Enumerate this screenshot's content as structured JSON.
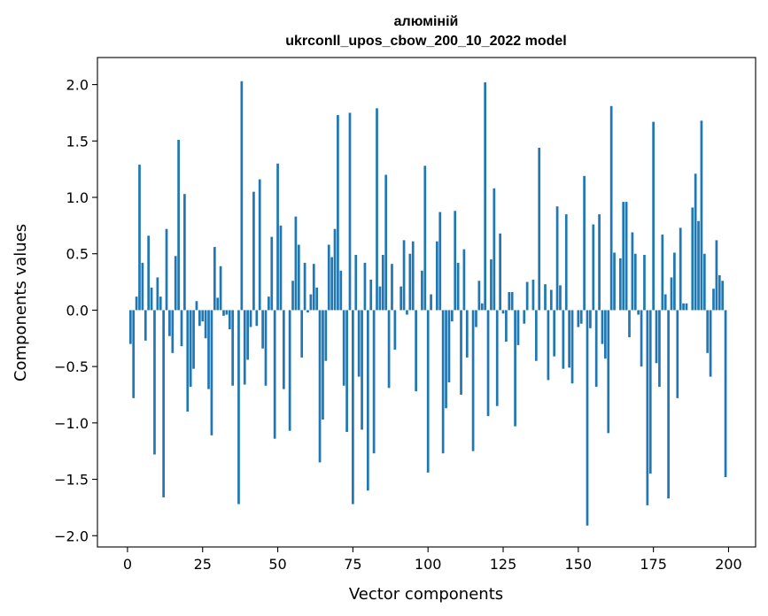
{
  "chart_data": {
    "type": "bar",
    "title_line1": "алюміній",
    "title_line2": "ukrconll_upos_cbow_200_10_2022 model",
    "xlabel": "Vector components",
    "ylabel": "Components values",
    "xlim": [
      -10,
      209
    ],
    "ylim": [
      -2.1,
      2.24
    ],
    "x_ticks": [
      0,
      25,
      50,
      75,
      100,
      125,
      150,
      175,
      200
    ],
    "y_ticks": [
      -2.0,
      -1.5,
      -1.0,
      -0.5,
      0.0,
      0.5,
      1.0,
      1.5,
      2.0
    ],
    "y_tick_labels": [
      "−2.0",
      "−1.5",
      "−1.0",
      "−0.5",
      "0.0",
      "0.5",
      "1.0",
      "1.5",
      "2.0"
    ],
    "bar_color": "#1f77b4",
    "grid": false,
    "x_start": 1,
    "values": [
      -0.3,
      -0.78,
      0.12,
      1.29,
      0.42,
      -0.27,
      0.66,
      0.2,
      -1.28,
      0.29,
      0.12,
      -1.66,
      0.72,
      -0.23,
      -0.38,
      0.48,
      1.51,
      -0.32,
      1.03,
      -0.9,
      -0.68,
      -0.52,
      0.08,
      -0.14,
      -0.1,
      -0.25,
      -0.7,
      -1.11,
      0.56,
      0.11,
      0.39,
      -0.05,
      -0.04,
      -0.17,
      -0.67,
      0.0,
      -1.72,
      2.03,
      -0.66,
      -0.44,
      -0.15,
      1.05,
      -0.14,
      1.16,
      -0.34,
      -0.67,
      0.12,
      0.65,
      -1.14,
      1.3,
      0.75,
      -0.7,
      0.0,
      -1.07,
      0.26,
      0.83,
      0.58,
      -0.42,
      0.42,
      -0.02,
      0.14,
      0.41,
      0.2,
      -1.35,
      -0.97,
      -0.45,
      0.58,
      0.47,
      0.72,
      1.73,
      0.35,
      -0.67,
      -1.08,
      1.75,
      -1.72,
      0.49,
      -0.59,
      -1.06,
      0.42,
      -1.6,
      0.27,
      -1.27,
      1.79,
      0.21,
      0.49,
      1.2,
      -0.69,
      0.41,
      -0.35,
      0.0,
      0.21,
      0.62,
      -0.04,
      0.5,
      0.61,
      -0.72,
      0.0,
      0.35,
      1.28,
      -1.44,
      0.14,
      0.0,
      0.61,
      0.87,
      -1.27,
      -0.87,
      -0.64,
      -0.1,
      0.88,
      0.42,
      -0.75,
      0.54,
      -0.42,
      0.0,
      -1.25,
      -0.15,
      0.26,
      0.06,
      2.02,
      -0.94,
      0.45,
      1.08,
      -0.85,
      0.68,
      -0.03,
      -0.28,
      0.16,
      0.16,
      -1.03,
      -0.31,
      0.0,
      -0.12,
      0.25,
      0.0,
      0.27,
      -0.45,
      1.44,
      0.0,
      0.23,
      -0.62,
      0.18,
      -0.41,
      0.92,
      0.22,
      -0.52,
      0.85,
      -0.51,
      -0.65,
      0.0,
      -0.15,
      -0.12,
      1.19,
      -1.91,
      -0.16,
      0.76,
      -0.68,
      0.85,
      -0.3,
      -0.43,
      -1.09,
      1.81,
      0.51,
      0.0,
      0.46,
      0.96,
      0.96,
      -0.24,
      0.69,
      0.5,
      -0.04,
      -0.5,
      0.49,
      -1.73,
      -1.45,
      1.67,
      -0.47,
      -0.68,
      0.67,
      0.14,
      -1.67,
      0.29,
      0.51,
      -0.78,
      0.73,
      0.06,
      0.06,
      0.0,
      0.91,
      1.21,
      0.79,
      1.68,
      0.5,
      -0.38,
      -0.59,
      0.19,
      0.62,
      0.31,
      0.26,
      -1.48
    ]
  }
}
